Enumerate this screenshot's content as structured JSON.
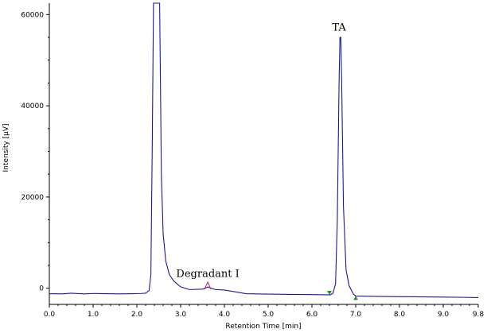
{
  "chart_data": {
    "type": "line",
    "title": "",
    "xlabel": "Retention Time [min]",
    "ylabel": "Intensity [µV]",
    "xlim": [
      0.0,
      9.8
    ],
    "ylim": [
      -2500,
      62500
    ],
    "x_ticks": [
      "0.0",
      "1.0",
      "2.0",
      "3.0",
      "4.0",
      "5.0",
      "6.0",
      "7.0",
      "8.0",
      "9.0",
      "9.8"
    ],
    "y_ticks": [
      "0",
      "20000",
      "40000",
      "60000"
    ],
    "grid": false,
    "legend": "none",
    "colors": {
      "trace": "#1a1a8c",
      "start_marker": "#2e8b2e",
      "end_marker": "#2e8b2e",
      "degradant_marker": "#c2185b"
    },
    "series": [
      {
        "values": [
          [
            0.0,
            -1200
          ],
          [
            0.3,
            -1250
          ],
          [
            0.5,
            -1100
          ],
          [
            0.8,
            -1250
          ],
          [
            1.0,
            -1150
          ],
          [
            1.3,
            -1200
          ],
          [
            1.6,
            -1250
          ],
          [
            1.9,
            -1200
          ],
          [
            2.1,
            -1150
          ],
          [
            2.2,
            -1100
          ],
          [
            2.28,
            -500
          ],
          [
            2.32,
            3000
          ],
          [
            2.35,
            30000
          ],
          [
            2.38,
            62500
          ],
          [
            2.52,
            62500
          ],
          [
            2.56,
            25000
          ],
          [
            2.6,
            12000
          ],
          [
            2.66,
            6000
          ],
          [
            2.74,
            3000
          ],
          [
            2.85,
            1500
          ],
          [
            3.0,
            300
          ],
          [
            3.2,
            -300
          ],
          [
            3.5,
            -200
          ],
          [
            3.58,
            100
          ],
          [
            3.62,
            300
          ],
          [
            3.68,
            50
          ],
          [
            3.8,
            -300
          ],
          [
            4.0,
            -400
          ],
          [
            4.5,
            -1200
          ],
          [
            5.0,
            -1300
          ],
          [
            5.5,
            -1350
          ],
          [
            6.0,
            -1400
          ],
          [
            6.3,
            -1450
          ],
          [
            6.42,
            -1450
          ],
          [
            6.48,
            -1100
          ],
          [
            6.54,
            1000
          ],
          [
            6.58,
            15000
          ],
          [
            6.62,
            45000
          ],
          [
            6.64,
            55000
          ],
          [
            6.66,
            55000
          ],
          [
            6.68,
            45000
          ],
          [
            6.72,
            18000
          ],
          [
            6.78,
            4000
          ],
          [
            6.85,
            500
          ],
          [
            6.95,
            -1300
          ],
          [
            7.0,
            -1700
          ],
          [
            7.5,
            -1800
          ],
          [
            8.0,
            -1850
          ],
          [
            8.5,
            -1900
          ],
          [
            9.0,
            -1950
          ],
          [
            9.5,
            -2000
          ],
          [
            9.8,
            -2050
          ]
        ]
      }
    ],
    "annotations": [
      {
        "text": "TA",
        "x": 6.62,
        "y": 56500
      },
      {
        "text": "Degradant I",
        "x": 3.62,
        "y": 2500
      }
    ],
    "markers": [
      {
        "kind": "start",
        "x": 6.4,
        "y": -1450
      },
      {
        "kind": "end",
        "x": 7.0,
        "y": -1700
      },
      {
        "kind": "degradant",
        "x": 3.62,
        "y": 300
      }
    ]
  }
}
